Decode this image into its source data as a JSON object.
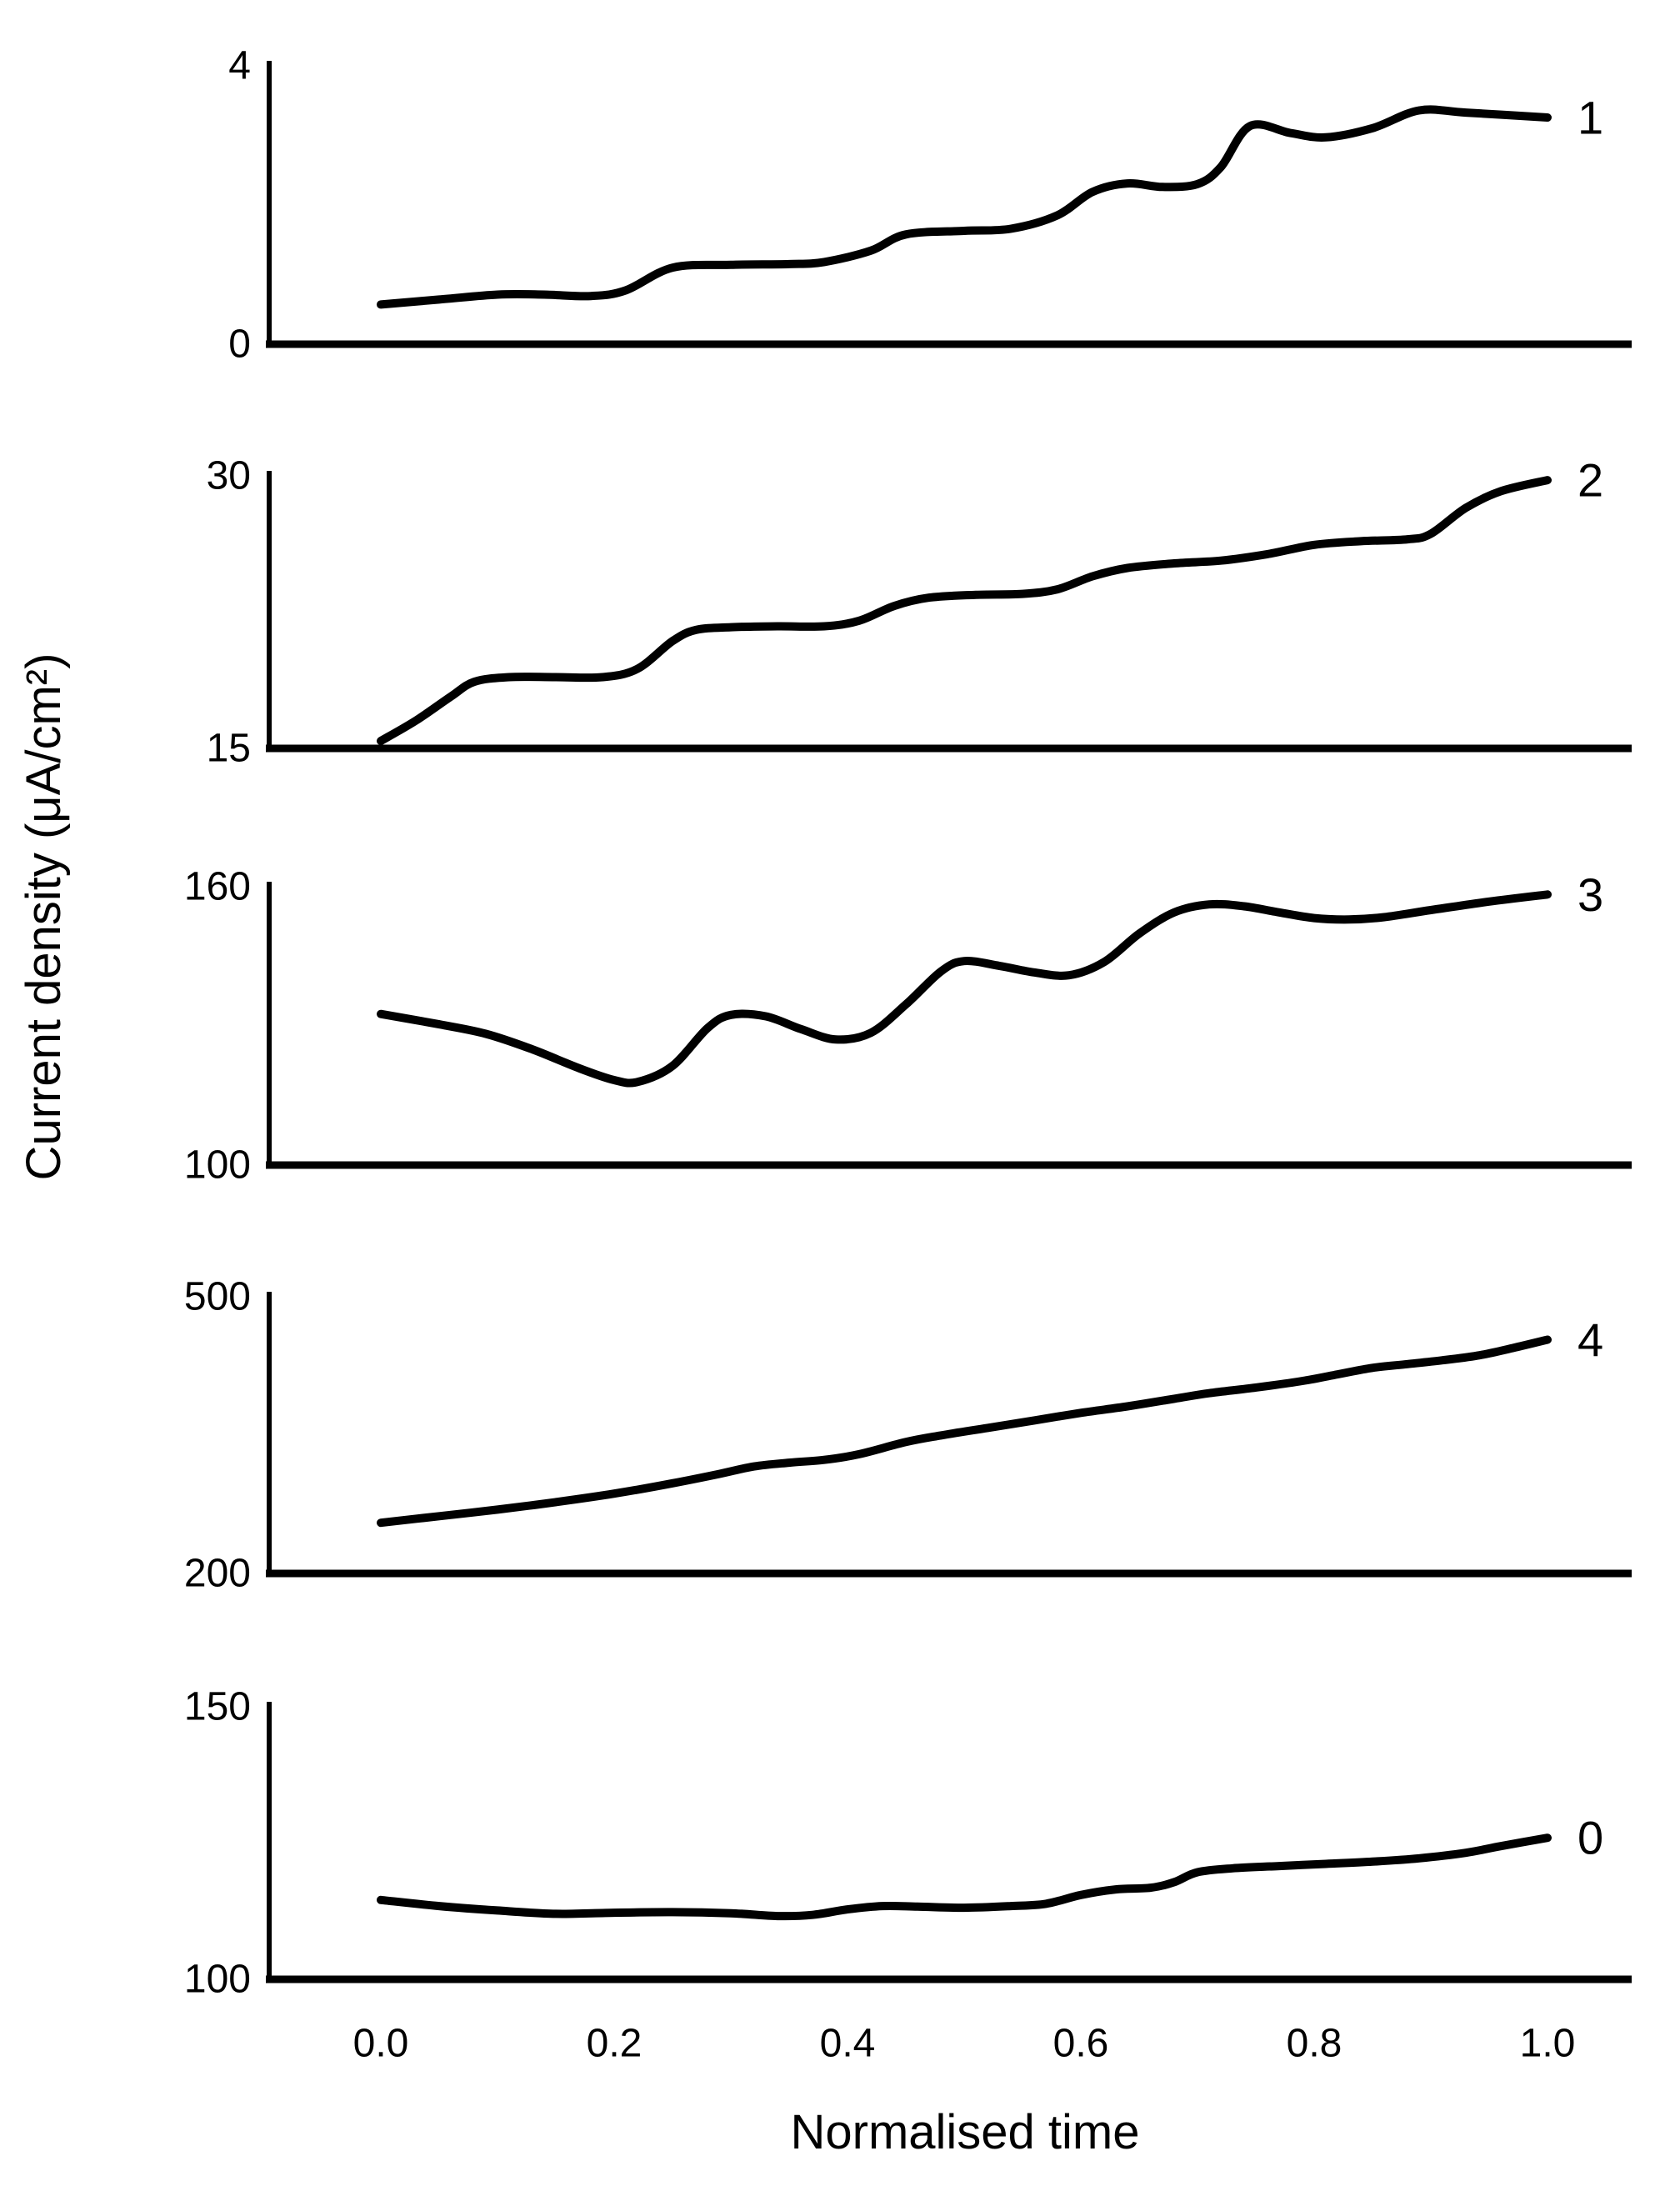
{
  "figure": {
    "xlabel": "Normalised time",
    "ylabel": "Current density (μA/cm²)",
    "x_ticks": [
      "0.0",
      "0.2",
      "0.4",
      "0.6",
      "0.8",
      "1.0"
    ],
    "line_color": "#000000",
    "background": "#ffffff"
  },
  "chart_data": [
    {
      "type": "line",
      "panel_index": 1,
      "label": "1",
      "ylim": [
        0,
        4
      ],
      "ytick_labels": [
        "4",
        "0"
      ],
      "xlim": [
        0,
        1
      ],
      "grid": false,
      "x": [
        0,
        0.05,
        0.1,
        0.14,
        0.18,
        0.21,
        0.25,
        0.3,
        0.35,
        0.38,
        0.42,
        0.45,
        0.5,
        0.54,
        0.58,
        0.61,
        0.64,
        0.67,
        0.7,
        0.72,
        0.745,
        0.78,
        0.81,
        0.85,
        0.89,
        0.93,
        1.0
      ],
      "y": [
        0.56,
        0.63,
        0.7,
        0.7,
        0.68,
        0.76,
        1.08,
        1.12,
        1.13,
        1.16,
        1.32,
        1.55,
        1.6,
        1.63,
        1.82,
        2.15,
        2.27,
        2.22,
        2.26,
        2.5,
        3.08,
        2.98,
        2.92,
        3.05,
        3.3,
        3.27,
        3.2
      ]
    },
    {
      "type": "line",
      "panel_index": 2,
      "label": "2",
      "ylim": [
        15,
        30
      ],
      "ytick_labels": [
        "30",
        "15"
      ],
      "xlim": [
        0,
        1
      ],
      "grid": false,
      "x": [
        0,
        0.03,
        0.06,
        0.08,
        0.11,
        0.15,
        0.19,
        0.22,
        0.25,
        0.27,
        0.3,
        0.34,
        0.38,
        0.41,
        0.44,
        0.47,
        0.51,
        0.55,
        0.58,
        0.61,
        0.64,
        0.68,
        0.72,
        0.76,
        0.8,
        0.84,
        0.88,
        0.9,
        0.93,
        0.96,
        1.0
      ],
      "y": [
        15.4,
        16.5,
        17.8,
        18.6,
        18.85,
        18.85,
        18.85,
        19.3,
        20.8,
        21.4,
        21.55,
        21.6,
        21.6,
        21.9,
        22.7,
        23.15,
        23.3,
        23.35,
        23.6,
        24.3,
        24.75,
        25.0,
        25.15,
        25.5,
        26.0,
        26.2,
        26.3,
        26.6,
        28.0,
        28.9,
        29.5
      ]
    },
    {
      "type": "line",
      "panel_index": 3,
      "label": "3",
      "ylim": [
        100,
        160
      ],
      "ytick_labels": [
        "160",
        "100"
      ],
      "xlim": [
        0,
        1
      ],
      "grid": false,
      "x": [
        0,
        0.05,
        0.09,
        0.13,
        0.17,
        0.2,
        0.22,
        0.25,
        0.28,
        0.3,
        0.33,
        0.36,
        0.39,
        0.42,
        0.45,
        0.48,
        0.5,
        0.53,
        0.56,
        0.59,
        0.62,
        0.65,
        0.68,
        0.71,
        0.74,
        0.77,
        0.8,
        0.83,
        0.86,
        0.9,
        0.95,
        1.0
      ],
      "y": [
        132,
        129.8,
        127.8,
        124.5,
        120.5,
        118,
        117.6,
        121,
        129,
        131.8,
        131.5,
        128.8,
        126.6,
        128,
        134,
        141,
        143.2,
        142.2,
        140.8,
        140.2,
        143,
        149,
        153.5,
        155.2,
        154.8,
        153.5,
        152.3,
        152.0,
        152.5,
        154,
        155.8,
        157.3
      ]
    },
    {
      "type": "line",
      "panel_index": 4,
      "label": "4",
      "ylim": [
        200,
        500
      ],
      "ytick_labels": [
        "500",
        "200"
      ],
      "xlim": [
        0,
        1
      ],
      "grid": false,
      "x": [
        0,
        0.05,
        0.1,
        0.15,
        0.2,
        0.25,
        0.29,
        0.32,
        0.35,
        0.38,
        0.41,
        0.45,
        0.48,
        0.52,
        0.56,
        0.6,
        0.64,
        0.68,
        0.71,
        0.75,
        0.79,
        0.82,
        0.85,
        0.88,
        0.91,
        0.94,
        0.97,
        1.0
      ],
      "y": [
        254,
        261,
        268,
        276,
        285,
        296,
        306,
        314,
        318,
        321,
        327,
        340,
        347,
        355,
        363,
        371,
        378,
        386,
        392,
        398,
        405,
        412,
        419,
        423,
        427,
        432,
        440,
        449
      ]
    },
    {
      "type": "line",
      "panel_index": 5,
      "label": "0",
      "ylim": [
        100,
        150
      ],
      "ytick_labels": [
        "150",
        "100"
      ],
      "xlim": [
        0,
        1
      ],
      "grid": false,
      "x": [
        0,
        0.05,
        0.1,
        0.15,
        0.2,
        0.25,
        0.3,
        0.34,
        0.37,
        0.4,
        0.43,
        0.46,
        0.5,
        0.54,
        0.57,
        0.6,
        0.63,
        0.66,
        0.68,
        0.7,
        0.73,
        0.77,
        0.81,
        0.85,
        0.89,
        0.93,
        0.96,
        1.0
      ],
      "y": [
        114.3,
        113.2,
        112.4,
        111.8,
        112.0,
        112.1,
        111.9,
        111.4,
        111.6,
        112.6,
        113.2,
        113.1,
        112.9,
        113.2,
        113.6,
        115.2,
        116.2,
        116.5,
        117.5,
        119.3,
        120.0,
        120.4,
        120.8,
        121.2,
        121.8,
        122.8,
        124.0,
        125.5
      ]
    }
  ]
}
